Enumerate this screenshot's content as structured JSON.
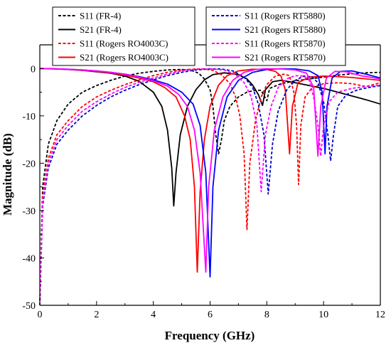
{
  "chart_data": {
    "type": "line",
    "title": "",
    "xlabel": "Frequency (GHz)",
    "ylabel": "Magnitude (dB)",
    "xlim": [
      0,
      12
    ],
    "ylim": [
      -50,
      5
    ],
    "x_ticks": [
      0,
      2,
      4,
      6,
      8,
      10,
      12
    ],
    "y_ticks": [
      0,
      -10,
      -20,
      -30,
      -40,
      -50
    ],
    "x_tick_labels": [
      "0",
      "2",
      "4",
      "6",
      "8",
      "10",
      "12"
    ],
    "y_tick_labels": [
      "0",
      "-10",
      "-20",
      "-30",
      "-40",
      "-50"
    ],
    "grid": false,
    "legend_placement": "top (two boxes above plot)",
    "series": [
      {
        "name": "S11 (FR-4)",
        "color": "#000000",
        "dash": true,
        "legend_box": 0,
        "points": [
          [
            0,
            -50
          ],
          [
            0.1,
            -25
          ],
          [
            0.3,
            -16
          ],
          [
            0.6,
            -11
          ],
          [
            1,
            -7.5
          ],
          [
            1.5,
            -5
          ],
          [
            2,
            -3.6
          ],
          [
            2.5,
            -2.5
          ],
          [
            3,
            -1.6
          ],
          [
            3.5,
            -1
          ],
          [
            4,
            -0.6
          ],
          [
            4.5,
            -0.3
          ],
          [
            5,
            -0.2
          ],
          [
            5.3,
            -0.3
          ],
          [
            5.6,
            -1
          ],
          [
            5.8,
            -2.2
          ],
          [
            6,
            -4.5
          ],
          [
            6.1,
            -8
          ],
          [
            6.2,
            -14
          ],
          [
            6.3,
            -18
          ],
          [
            6.4,
            -15
          ],
          [
            6.5,
            -11
          ],
          [
            6.7,
            -8
          ],
          [
            7,
            -6
          ],
          [
            7.3,
            -5
          ],
          [
            7.6,
            -4.6
          ],
          [
            7.8,
            -4.6
          ],
          [
            8,
            -6.8
          ],
          [
            8.1,
            -4.2
          ],
          [
            8.5,
            -3.2
          ],
          [
            9,
            -2.6
          ],
          [
            9.5,
            -2.2
          ],
          [
            10,
            -1.8
          ],
          [
            10.5,
            -1.4
          ],
          [
            11,
            -1.1
          ],
          [
            11.5,
            -0.9
          ],
          [
            12,
            -0.8
          ]
        ]
      },
      {
        "name": "S21 (FR-4)",
        "color": "#000000",
        "dash": false,
        "legend_box": 0,
        "points": [
          [
            0,
            0
          ],
          [
            0.5,
            -0.1
          ],
          [
            1,
            -0.2
          ],
          [
            1.5,
            -0.4
          ],
          [
            2,
            -0.7
          ],
          [
            2.5,
            -1
          ],
          [
            3,
            -1.6
          ],
          [
            3.5,
            -2.7
          ],
          [
            4,
            -5
          ],
          [
            4.3,
            -8
          ],
          [
            4.5,
            -13
          ],
          [
            4.65,
            -21
          ],
          [
            4.72,
            -29
          ],
          [
            4.8,
            -22
          ],
          [
            4.95,
            -14
          ],
          [
            5.2,
            -8
          ],
          [
            5.5,
            -4.5
          ],
          [
            5.8,
            -2.4
          ],
          [
            6.1,
            -1.3
          ],
          [
            6.5,
            -0.9
          ],
          [
            7,
            -1.3
          ],
          [
            7.3,
            -2.2
          ],
          [
            7.5,
            -3.5
          ],
          [
            7.7,
            -5.5
          ],
          [
            7.85,
            -7.8
          ],
          [
            7.95,
            -4.5
          ],
          [
            8.2,
            -2.8
          ],
          [
            8.5,
            -2.5
          ],
          [
            9,
            -3
          ],
          [
            9.5,
            -3.6
          ],
          [
            10,
            -4.2
          ],
          [
            10.5,
            -5
          ],
          [
            11,
            -5.8
          ],
          [
            11.5,
            -6.6
          ],
          [
            12,
            -7.5
          ]
        ]
      },
      {
        "name": "S11 (Rogers RO4003C)",
        "color": "#ff0000",
        "dash": true,
        "legend_box": 0,
        "points": [
          [
            0,
            -50
          ],
          [
            0.1,
            -27
          ],
          [
            0.3,
            -19
          ],
          [
            0.6,
            -14
          ],
          [
            1,
            -11
          ],
          [
            1.5,
            -8
          ],
          [
            2,
            -6
          ],
          [
            2.5,
            -4.6
          ],
          [
            3,
            -3.4
          ],
          [
            3.5,
            -2.4
          ],
          [
            4,
            -1.5
          ],
          [
            4.5,
            -0.8
          ],
          [
            5,
            -0.3
          ],
          [
            5.5,
            -0.1
          ],
          [
            5.8,
            -0.1
          ],
          [
            6.1,
            -0.4
          ],
          [
            6.4,
            -1.3
          ],
          [
            6.7,
            -3.2
          ],
          [
            6.9,
            -6
          ],
          [
            7.05,
            -10
          ],
          [
            7.2,
            -18
          ],
          [
            7.3,
            -34
          ],
          [
            7.4,
            -20
          ],
          [
            7.6,
            -11
          ],
          [
            7.8,
            -6
          ],
          [
            8,
            -3.4
          ],
          [
            8.3,
            -1.6
          ],
          [
            8.6,
            -1.2
          ],
          [
            8.8,
            -1.5
          ],
          [
            8.95,
            -5
          ],
          [
            9.05,
            -12
          ],
          [
            9.12,
            -24.5
          ],
          [
            9.2,
            -12
          ],
          [
            9.35,
            -6
          ],
          [
            9.6,
            -4
          ],
          [
            10,
            -3.2
          ],
          [
            10.5,
            -3
          ],
          [
            11,
            -3.2
          ],
          [
            11.5,
            -3.8
          ],
          [
            12,
            -3
          ]
        ]
      },
      {
        "name": "S21 (Rogers RO4003C)",
        "color": "#ff0000",
        "dash": false,
        "legend_box": 0,
        "points": [
          [
            0,
            0
          ],
          [
            0.5,
            -0.05
          ],
          [
            1,
            -0.2
          ],
          [
            1.5,
            -0.4
          ],
          [
            2,
            -0.6
          ],
          [
            2.5,
            -0.9
          ],
          [
            3,
            -1.4
          ],
          [
            3.5,
            -2
          ],
          [
            4,
            -2.8
          ],
          [
            4.4,
            -4
          ],
          [
            4.8,
            -6
          ],
          [
            5.1,
            -10
          ],
          [
            5.3,
            -15
          ],
          [
            5.45,
            -25
          ],
          [
            5.55,
            -43
          ],
          [
            5.65,
            -26
          ],
          [
            5.8,
            -15
          ],
          [
            6,
            -8
          ],
          [
            6.3,
            -3.5
          ],
          [
            6.6,
            -1.5
          ],
          [
            7,
            -0.5
          ],
          [
            7.5,
            -0.15
          ],
          [
            8,
            -0.2
          ],
          [
            8.3,
            -0.6
          ],
          [
            8.5,
            -1.6
          ],
          [
            8.65,
            -4.5
          ],
          [
            8.8,
            -18
          ],
          [
            8.9,
            -8
          ],
          [
            9.1,
            -3
          ],
          [
            9.5,
            -1.8
          ],
          [
            10,
            -1.6
          ],
          [
            10.5,
            -1.7
          ],
          [
            11,
            -1.9
          ],
          [
            11.5,
            -2.2
          ],
          [
            12,
            -2.5
          ]
        ]
      },
      {
        "name": "S11 (Rogers RT5880)",
        "color": "#0000cc",
        "dash": true,
        "legend_box": 1,
        "points": [
          [
            0,
            -50
          ],
          [
            0.1,
            -29
          ],
          [
            0.3,
            -21
          ],
          [
            0.6,
            -16
          ],
          [
            1,
            -13
          ],
          [
            1.5,
            -10
          ],
          [
            2,
            -7.8
          ],
          [
            2.5,
            -6
          ],
          [
            3,
            -4.6
          ],
          [
            3.5,
            -3.4
          ],
          [
            4,
            -2.4
          ],
          [
            4.5,
            -1.5
          ],
          [
            5,
            -0.8
          ],
          [
            5.5,
            -0.3
          ],
          [
            6,
            -0.1
          ],
          [
            6.4,
            -0.1
          ],
          [
            6.8,
            -0.5
          ],
          [
            7.2,
            -1.8
          ],
          [
            7.5,
            -4
          ],
          [
            7.7,
            -7.5
          ],
          [
            7.9,
            -14
          ],
          [
            8.05,
            -26.5
          ],
          [
            8.2,
            -16
          ],
          [
            8.4,
            -9
          ],
          [
            8.7,
            -4.5
          ],
          [
            9,
            -2.5
          ],
          [
            9.3,
            -1.6
          ],
          [
            9.6,
            -1.8
          ],
          [
            9.8,
            -3
          ],
          [
            10,
            -7
          ],
          [
            10.15,
            -14
          ],
          [
            10.25,
            -19.5
          ],
          [
            10.35,
            -14
          ],
          [
            10.5,
            -8
          ],
          [
            10.8,
            -5.5
          ],
          [
            11.2,
            -4.5
          ],
          [
            11.6,
            -4
          ],
          [
            12,
            -3.6
          ]
        ]
      },
      {
        "name": "S21 (Rogers RT5880)",
        "color": "#0000ff",
        "dash": false,
        "legend_box": 1,
        "points": [
          [
            0,
            0
          ],
          [
            0.5,
            -0.05
          ],
          [
            1,
            -0.15
          ],
          [
            1.5,
            -0.3
          ],
          [
            2,
            -0.5
          ],
          [
            2.5,
            -0.8
          ],
          [
            3,
            -1.2
          ],
          [
            3.5,
            -1.7
          ],
          [
            4,
            -2.4
          ],
          [
            4.5,
            -3.3
          ],
          [
            5,
            -5
          ],
          [
            5.4,
            -7.5
          ],
          [
            5.65,
            -12
          ],
          [
            5.85,
            -22
          ],
          [
            6,
            -44
          ],
          [
            6.1,
            -25
          ],
          [
            6.3,
            -13
          ],
          [
            6.6,
            -6
          ],
          [
            7,
            -2.5
          ],
          [
            7.5,
            -0.8
          ],
          [
            8,
            -0.2
          ],
          [
            8.5,
            -0.05
          ],
          [
            9,
            -0.1
          ],
          [
            9.5,
            -0.5
          ],
          [
            9.8,
            -1.5
          ],
          [
            9.95,
            -5
          ],
          [
            10.05,
            -18
          ],
          [
            10.12,
            -8
          ],
          [
            10.3,
            -2
          ],
          [
            10.6,
            -0.6
          ],
          [
            11,
            -0.5
          ],
          [
            11.5,
            -1.2
          ],
          [
            12,
            -2
          ]
        ]
      },
      {
        "name": "S11 (Rogers RT5870)",
        "color": "#ff00ff",
        "dash": true,
        "legend_box": 1,
        "points": [
          [
            0,
            -50
          ],
          [
            0.1,
            -28
          ],
          [
            0.3,
            -20
          ],
          [
            0.6,
            -15
          ],
          [
            1,
            -12
          ],
          [
            1.5,
            -9
          ],
          [
            2,
            -7
          ],
          [
            2.5,
            -5.4
          ],
          [
            3,
            -4
          ],
          [
            3.5,
            -2.9
          ],
          [
            4,
            -2
          ],
          [
            4.5,
            -1.2
          ],
          [
            5,
            -0.5
          ],
          [
            5.5,
            -0.15
          ],
          [
            6,
            -0.1
          ],
          [
            6.5,
            -0.3
          ],
          [
            6.9,
            -1.3
          ],
          [
            7.2,
            -3
          ],
          [
            7.45,
            -6
          ],
          [
            7.65,
            -12
          ],
          [
            7.8,
            -26
          ],
          [
            7.95,
            -14
          ],
          [
            8.15,
            -8
          ],
          [
            8.4,
            -4
          ],
          [
            8.7,
            -2.2
          ],
          [
            9,
            -1.5
          ],
          [
            9.3,
            -1.6
          ],
          [
            9.5,
            -2.5
          ],
          [
            9.65,
            -6
          ],
          [
            9.8,
            -12
          ],
          [
            9.9,
            -18.5
          ],
          [
            10,
            -12
          ],
          [
            10.2,
            -7
          ],
          [
            10.5,
            -5
          ],
          [
            11,
            -4.2
          ],
          [
            11.5,
            -3.8
          ],
          [
            12,
            -3.5
          ]
        ]
      },
      {
        "name": "S21 (Rogers RT5870)",
        "color": "#ff00ff",
        "dash": false,
        "legend_box": 1,
        "points": [
          [
            0,
            0
          ],
          [
            0.5,
            -0.05
          ],
          [
            1,
            -0.15
          ],
          [
            1.5,
            -0.3
          ],
          [
            2,
            -0.5
          ],
          [
            2.5,
            -0.8
          ],
          [
            3,
            -1.2
          ],
          [
            3.5,
            -1.8
          ],
          [
            4,
            -2.6
          ],
          [
            4.5,
            -3.7
          ],
          [
            4.9,
            -5.5
          ],
          [
            5.2,
            -8
          ],
          [
            5.45,
            -13
          ],
          [
            5.65,
            -22
          ],
          [
            5.85,
            -43
          ],
          [
            5.95,
            -25
          ],
          [
            6.15,
            -13
          ],
          [
            6.45,
            -6
          ],
          [
            6.8,
            -2.5
          ],
          [
            7.2,
            -0.8
          ],
          [
            7.6,
            -0.2
          ],
          [
            8,
            -0.05
          ],
          [
            8.5,
            -0.1
          ],
          [
            9,
            -0.3
          ],
          [
            9.4,
            -1
          ],
          [
            9.65,
            -4
          ],
          [
            9.8,
            -18.5
          ],
          [
            9.9,
            -8
          ],
          [
            10.1,
            -2
          ],
          [
            10.4,
            -0.6
          ],
          [
            10.8,
            -0.7
          ],
          [
            11.3,
            -1.5
          ],
          [
            12,
            -2.2
          ]
        ]
      }
    ]
  }
}
